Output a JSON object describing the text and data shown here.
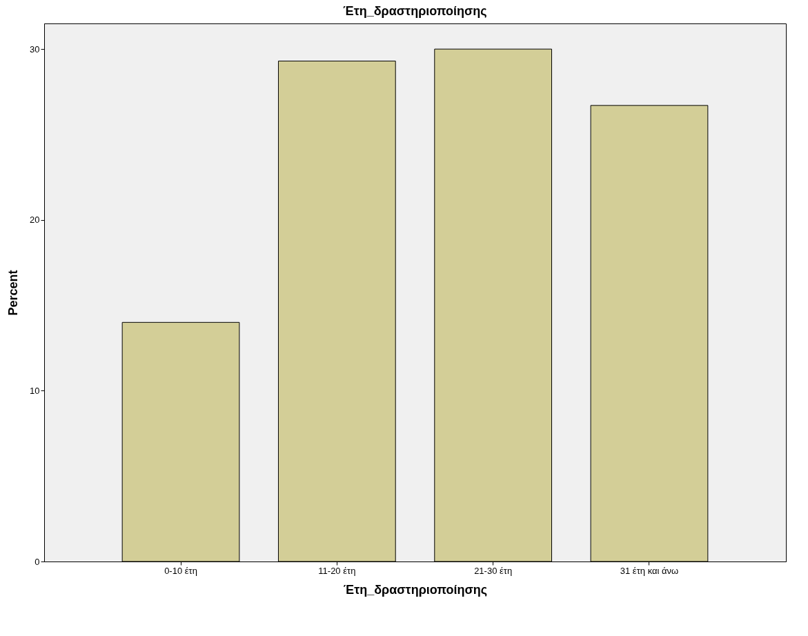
{
  "chart_data": {
    "type": "bar",
    "title": "Έτη_δραστηριοποίησης",
    "xlabel": "Έτη_δραστηριοποίησης",
    "ylabel": "Percent",
    "categories": [
      "0-10 έτη",
      "11-20 έτη",
      "21-30 έτη",
      "31 έτη και άνω"
    ],
    "values": [
      14.0,
      29.3,
      30.0,
      26.7
    ],
    "color": "#d3ce97",
    "ylim": [
      0,
      31.5
    ],
    "yticks": [
      0,
      10,
      20,
      30
    ],
    "grid": false
  }
}
